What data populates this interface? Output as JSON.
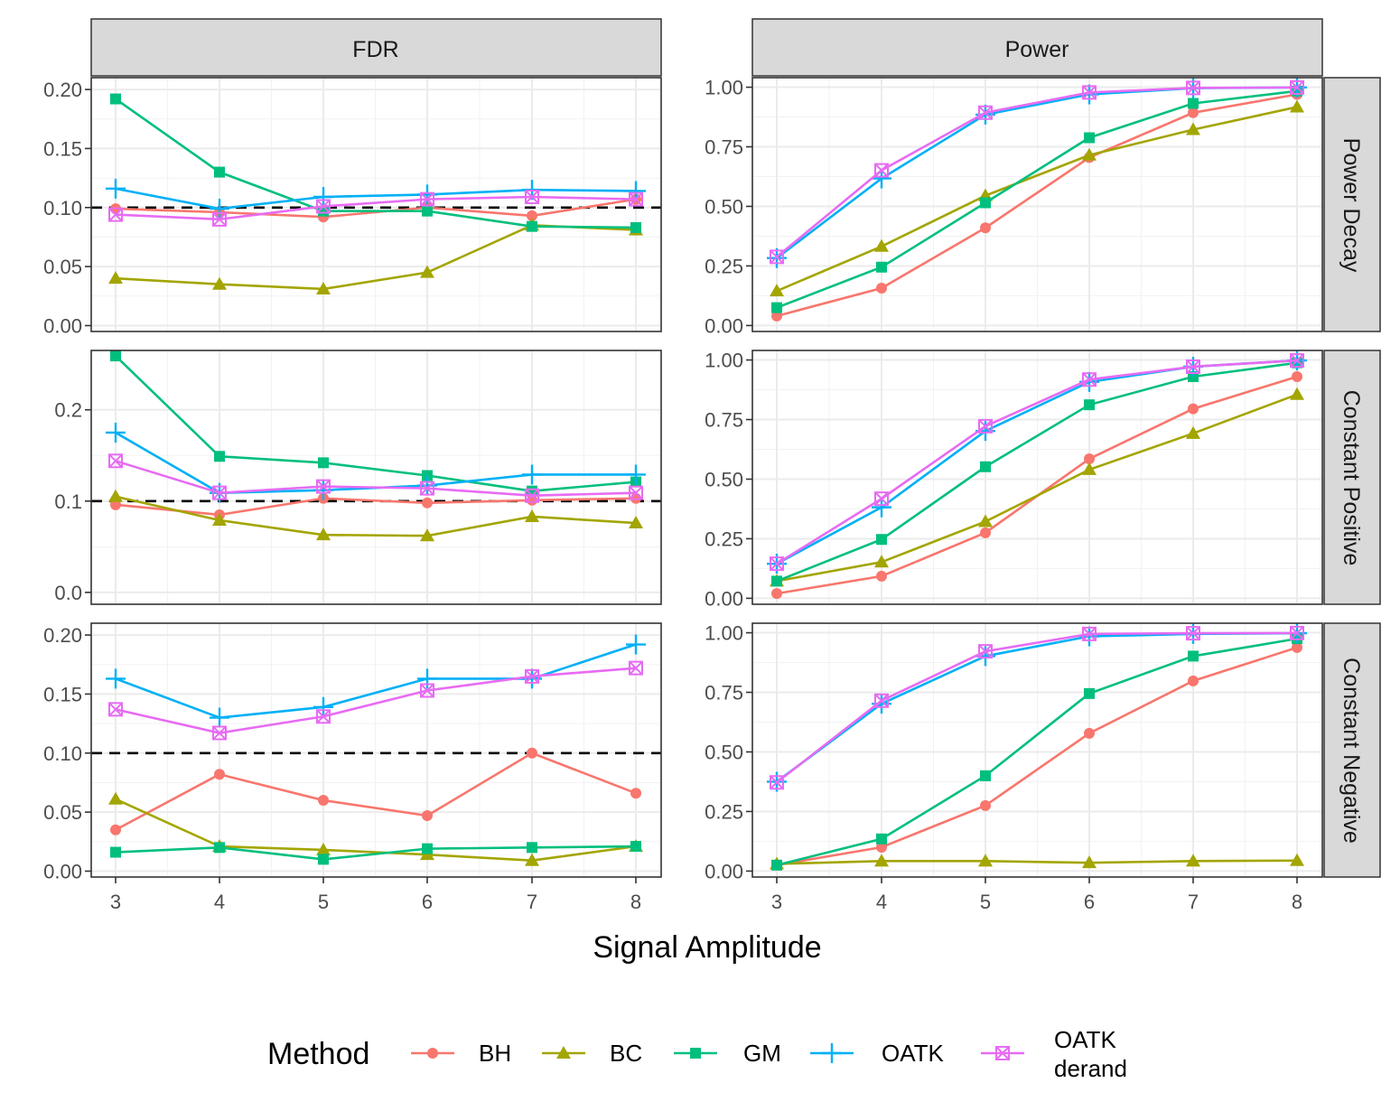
{
  "chart_data": {
    "type": "line",
    "xlabel": "Signal Amplitude",
    "x": [
      3,
      4,
      5,
      6,
      7,
      8
    ],
    "x_ticks": [
      "3",
      "4",
      "5",
      "6",
      "7",
      "8"
    ],
    "reference_line": {
      "panel": "FDR",
      "y": 0.1,
      "style": "dashed"
    },
    "columns": [
      "FDR",
      "Power"
    ],
    "rows": [
      "Power Decay",
      "Constant Positive",
      "Constant Negative"
    ],
    "legend": {
      "title": "Method",
      "position": "bottom",
      "entries": [
        {
          "key": "BH",
          "label": [
            "BH"
          ],
          "color": "#F8766D",
          "marker": "circle"
        },
        {
          "key": "BC",
          "label": [
            "BC"
          ],
          "color": "#A3A500",
          "marker": "triangle"
        },
        {
          "key": "GM",
          "label": [
            "GM"
          ],
          "color": "#00BF7D",
          "marker": "square"
        },
        {
          "key": "OATK",
          "label": [
            "OATK"
          ],
          "color": "#00B0F6",
          "marker": "plus"
        },
        {
          "key": "OATK_derand",
          "label": [
            "OATK",
            "derand"
          ],
          "color": "#E76BF3",
          "marker": "boxx"
        }
      ]
    },
    "panels": [
      {
        "row": "Power Decay",
        "col": "FDR",
        "ylim": [
          -0.005,
          0.21
        ],
        "yticks": [
          0,
          0.05,
          0.1,
          0.15,
          0.2
        ],
        "ytick_labels": [
          "0.00",
          "0.05",
          "0.10",
          "0.15",
          "0.20"
        ],
        "series": {
          "BH": [
            0.099,
            0.096,
            0.092,
            0.1,
            0.093,
            0.107
          ],
          "BC": [
            0.04,
            0.035,
            0.031,
            0.045,
            0.085,
            0.081
          ],
          "GM": [
            0.192,
            0.13,
            0.097,
            0.097,
            0.084,
            0.083
          ],
          "OATK": [
            0.116,
            0.099,
            0.109,
            0.111,
            0.115,
            0.114
          ],
          "OATK_derand": [
            0.094,
            0.09,
            0.101,
            0.107,
            0.109,
            0.107
          ]
        }
      },
      {
        "row": "Power Decay",
        "col": "Power",
        "ylim": [
          -0.025,
          1.04
        ],
        "yticks": [
          0,
          0.25,
          0.5,
          0.75,
          1.0
        ],
        "ytick_labels": [
          "0.00",
          "0.25",
          "0.50",
          "0.75",
          "1.00"
        ],
        "series": {
          "BH": [
            0.04,
            0.157,
            0.41,
            0.705,
            0.893,
            0.97
          ],
          "BC": [
            0.145,
            0.332,
            0.545,
            0.715,
            0.822,
            0.917
          ],
          "GM": [
            0.075,
            0.245,
            0.515,
            0.788,
            0.932,
            0.984
          ],
          "OATK": [
            0.283,
            0.617,
            0.885,
            0.97,
            0.996,
            0.999
          ],
          "OATK_derand": [
            0.288,
            0.651,
            0.893,
            0.978,
            0.997,
            0.999
          ]
        }
      },
      {
        "row": "Constant Positive",
        "col": "FDR",
        "ylim": [
          -0.013,
          0.265
        ],
        "yticks": [
          0,
          0.1,
          0.2
        ],
        "ytick_labels": [
          "0.0",
          "0.1",
          "0.2"
        ],
        "series": {
          "BH": [
            0.096,
            0.085,
            0.103,
            0.098,
            0.101,
            0.103
          ],
          "BC": [
            0.105,
            0.079,
            0.063,
            0.062,
            0.083,
            0.076
          ],
          "GM": [
            0.259,
            0.149,
            0.142,
            0.128,
            0.111,
            0.121
          ],
          "OATK": [
            0.175,
            0.109,
            0.112,
            0.117,
            0.129,
            0.129
          ],
          "OATK_derand": [
            0.144,
            0.109,
            0.116,
            0.114,
            0.106,
            0.109
          ]
        }
      },
      {
        "row": "Constant Positive",
        "col": "Power",
        "ylim": [
          -0.025,
          1.04
        ],
        "yticks": [
          0,
          0.25,
          0.5,
          0.75,
          1.0
        ],
        "ytick_labels": [
          "0.00",
          "0.25",
          "0.50",
          "0.75",
          "1.00"
        ],
        "series": {
          "BH": [
            0.02,
            0.093,
            0.275,
            0.585,
            0.795,
            0.93
          ],
          "BC": [
            0.072,
            0.152,
            0.322,
            0.54,
            0.692,
            0.855
          ],
          "GM": [
            0.072,
            0.247,
            0.552,
            0.812,
            0.93,
            0.988
          ],
          "OATK": [
            0.145,
            0.382,
            0.702,
            0.908,
            0.972,
            0.998
          ],
          "OATK_derand": [
            0.145,
            0.418,
            0.722,
            0.918,
            0.972,
            0.998
          ]
        }
      },
      {
        "row": "Constant Negative",
        "col": "FDR",
        "ylim": [
          -0.005,
          0.21
        ],
        "yticks": [
          0,
          0.05,
          0.1,
          0.15,
          0.2
        ],
        "ytick_labels": [
          "0.00",
          "0.05",
          "0.10",
          "0.15",
          "0.20"
        ],
        "series": {
          "BH": [
            0.035,
            0.082,
            0.06,
            0.047,
            0.1,
            0.066
          ],
          "BC": [
            0.061,
            0.021,
            0.018,
            0.014,
            0.009,
            0.021
          ],
          "GM": [
            0.016,
            0.02,
            0.01,
            0.019,
            0.02,
            0.021
          ],
          "OATK": [
            0.163,
            0.13,
            0.139,
            0.163,
            0.163,
            0.192
          ],
          "OATK_derand": [
            0.137,
            0.117,
            0.131,
            0.153,
            0.165,
            0.172
          ]
        }
      },
      {
        "row": "Constant Negative",
        "col": "Power",
        "ylim": [
          -0.025,
          1.04
        ],
        "yticks": [
          0,
          0.25,
          0.5,
          0.75,
          1.0
        ],
        "ytick_labels": [
          "0.00",
          "0.25",
          "0.50",
          "0.75",
          "1.00"
        ],
        "series": {
          "BH": [
            0.025,
            0.1,
            0.275,
            0.578,
            0.798,
            0.938
          ],
          "BC": [
            0.03,
            0.042,
            0.042,
            0.035,
            0.042,
            0.044
          ],
          "GM": [
            0.025,
            0.135,
            0.4,
            0.745,
            0.902,
            0.975
          ],
          "OATK": [
            0.375,
            0.702,
            0.902,
            0.985,
            0.995,
            0.998
          ],
          "OATK_derand": [
            0.372,
            0.715,
            0.922,
            0.995,
            0.998,
            0.999
          ]
        }
      }
    ]
  }
}
